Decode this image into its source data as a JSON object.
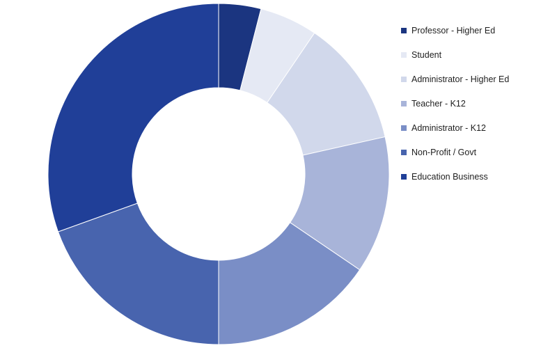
{
  "chart_data": {
    "type": "pie",
    "variant": "donut",
    "title": "",
    "legend_position": "right",
    "slices": [
      {
        "label": "Professor - Higher Ed",
        "value": 4,
        "color": "#1b3580"
      },
      {
        "label": "Student",
        "value": 5.5,
        "color": "#e5e9f4"
      },
      {
        "label": "Administrator - Higher Ed",
        "value": 12,
        "color": "#d1d8eb"
      },
      {
        "label": "Teacher - K12",
        "value": 13,
        "color": "#a8b4d9"
      },
      {
        "label": "Administrator - K12",
        "value": 15.5,
        "color": "#7a8ec6"
      },
      {
        "label": "Non-Profit / Govt",
        "value": 19.5,
        "color": "#4864ae"
      },
      {
        "label": "Education Business",
        "value": 30.5,
        "color": "#203f98"
      }
    ]
  }
}
